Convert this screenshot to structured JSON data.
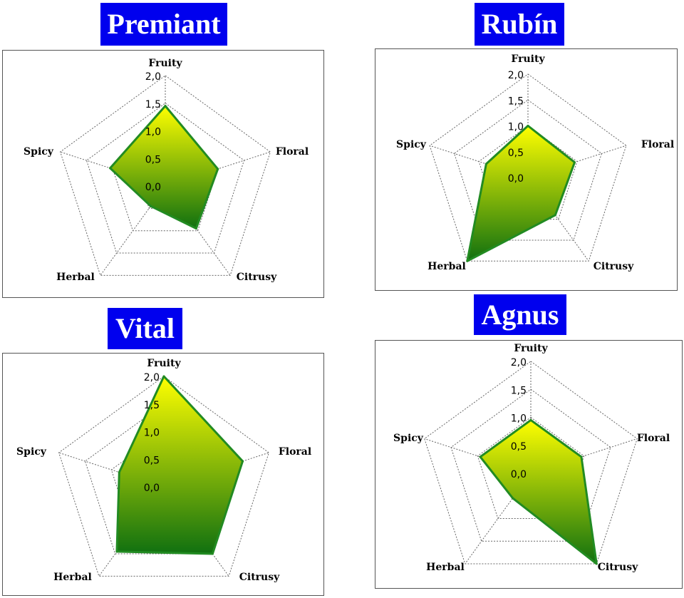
{
  "colors": {
    "title_bg": "#0000ee",
    "title_fg": "#ffffff",
    "fill_top": "#ffff00",
    "fill_bottom": "#107010",
    "outline": "#228b22",
    "grid": "#666666"
  },
  "chart_data": [
    {
      "type": "radar",
      "title": "Premiant",
      "axes": [
        "Fruity",
        "Floral",
        "Citrusy",
        "Herbal",
        "Spicy"
      ],
      "ticks": [
        "0,0",
        "0,5",
        "1,0",
        "1,5",
        "2,0"
      ],
      "rlim": [
        0,
        2.0
      ],
      "values": [
        1.45,
        1.0,
        0.95,
        0.45,
        1.05
      ]
    },
    {
      "type": "radar",
      "title": "Rubín",
      "axes": [
        "Fruity",
        "Floral",
        "Citrusy",
        "Herbal",
        "Spicy"
      ],
      "ticks": [
        "0,0",
        "0,5",
        "1,0",
        "1,5",
        "2,0"
      ],
      "rlim": [
        0,
        2.0
      ],
      "values": [
        1.0,
        0.95,
        0.9,
        2.0,
        0.85
      ]
    },
    {
      "type": "radar",
      "title": "Vital",
      "axes": [
        "Fruity",
        "Floral",
        "Citrusy",
        "Herbal",
        "Spicy"
      ],
      "ticks": [
        "0,0",
        "0,5",
        "1,0",
        "1,5",
        "2,0"
      ],
      "rlim": [
        0,
        2.0
      ],
      "values": [
        2.0,
        1.5,
        1.5,
        1.45,
        0.85
      ]
    },
    {
      "type": "radar",
      "title": "Agnus",
      "axes": [
        "Fruity",
        "Floral",
        "Citrusy",
        "Herbal",
        "Spicy"
      ],
      "ticks": [
        "0,0",
        "0,5",
        "1,0",
        "1,5",
        "2,0"
      ],
      "rlim": [
        0,
        2.0
      ],
      "values": [
        0.95,
        0.95,
        2.0,
        0.55,
        0.95
      ]
    }
  ]
}
